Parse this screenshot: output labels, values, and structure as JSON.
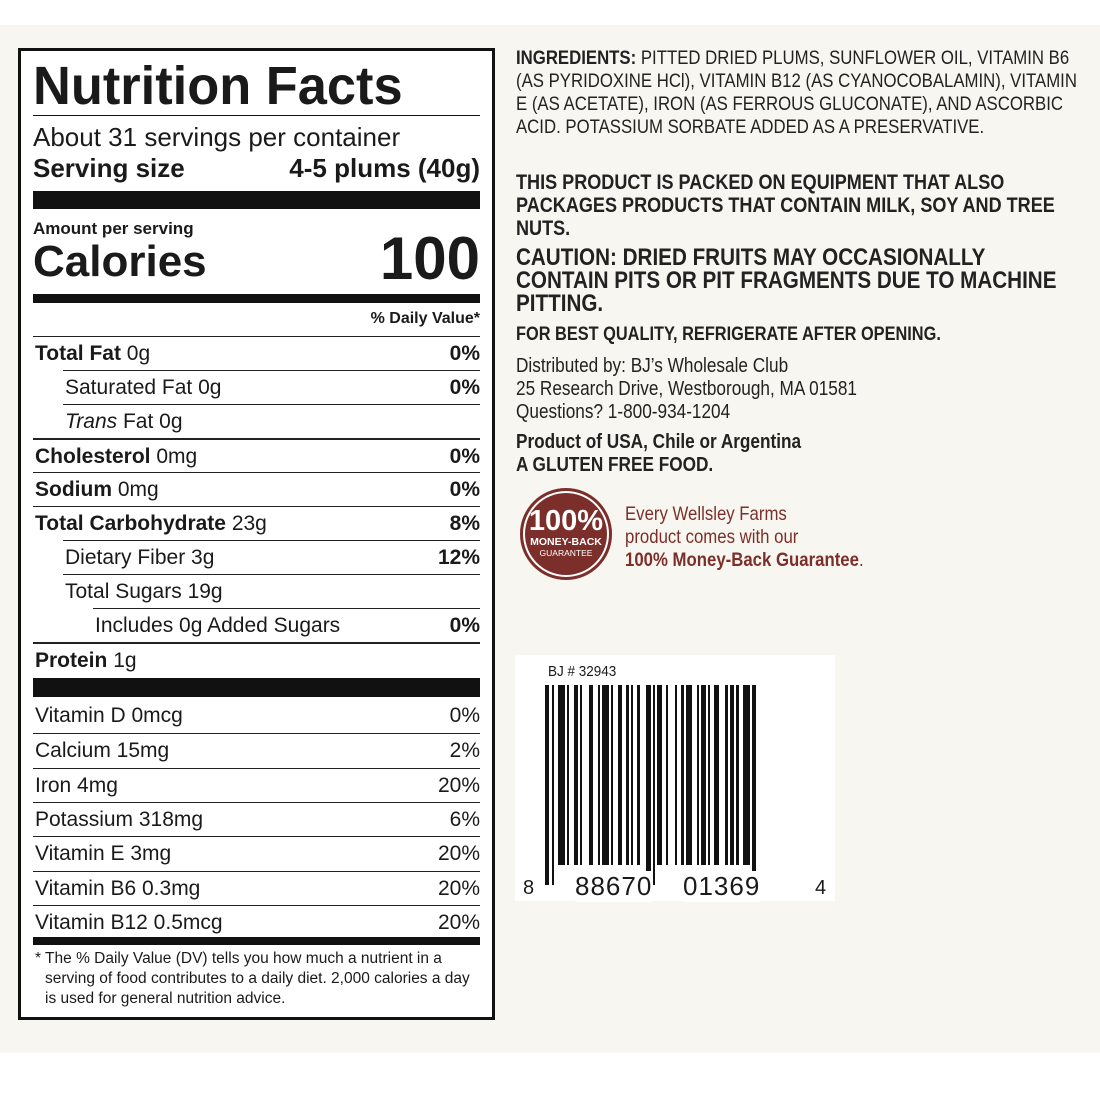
{
  "nutrition": {
    "title": "Nutrition Facts",
    "servings": "About 31 servings per container",
    "serving_size_label": "Serving size",
    "serving_size_value": "4-5 plums (40g)",
    "amount_per_serving": "Amount per serving",
    "calories_label": "Calories",
    "calories_value": "100",
    "dv_header": "% Daily Value*",
    "nutrients": [
      {
        "name": "Total Fat",
        "amount": "0g",
        "dv": "0%"
      },
      {
        "name": "Saturated Fat",
        "amount": "0g",
        "dv": "0%"
      },
      {
        "name": "Trans",
        "name_suffix": "Fat",
        "amount": "0g",
        "dv": ""
      },
      {
        "name": "Cholesterol",
        "amount": "0mg",
        "dv": "0%"
      },
      {
        "name": "Sodium",
        "amount": "0mg",
        "dv": "0%"
      },
      {
        "name": "Total Carbohydrate",
        "amount": "23g",
        "dv": "8%"
      },
      {
        "name": "Dietary Fiber",
        "amount": "3g",
        "dv": "12%"
      },
      {
        "name": "Total Sugars",
        "amount": "19g",
        "dv": ""
      },
      {
        "name": "Includes 0g Added Sugars",
        "amount": "",
        "dv": "0%"
      },
      {
        "name": "Protein",
        "amount": "1g",
        "dv": ""
      }
    ],
    "vitamins": [
      {
        "name": "Vitamin D 0mcg",
        "dv": "0%"
      },
      {
        "name": "Calcium 15mg",
        "dv": "2%"
      },
      {
        "name": "Iron 4mg",
        "dv": "20%"
      },
      {
        "name": "Potassium 318mg",
        "dv": "6%"
      },
      {
        "name": "Vitamin E 3mg",
        "dv": "20%"
      },
      {
        "name": "Vitamin B6 0.3mg",
        "dv": "20%"
      },
      {
        "name": "Vitamin B12 0.5mcg",
        "dv": "20%"
      }
    ],
    "footnote": "* The % Daily Value (DV) tells you how much a nutrient in a serving of food contributes to a daily diet. 2,000 calories a day is used for general nutrition advice."
  },
  "info": {
    "ingredients_label": "INGREDIENTS:",
    "ingredients_text": "PITTED DRIED PLUMS, SUNFLOWER OIL, VITAMIN B6 (AS PYRIDOXINE HCl), VITAMIN B12 (AS CYANOCOBALAMIN), VITAMIN E (AS ACETATE), IRON (AS FERROUS GLUCONATE), AND ASCORBIC ACID. POTASSIUM SORBATE ADDED AS A PRESERVATIVE.",
    "allergen": "THIS PRODUCT IS PACKED ON EQUIPMENT THAT ALSO PACKAGES PRODUCTS THAT CONTAIN MILK, SOY AND TREE NUTS.",
    "caution": "CAUTION: DRIED FRUITS MAY OCCASIONALLY CONTAIN PITS OR PIT FRAGMENTS DUE TO MACHINE PITTING.",
    "storage": "FOR BEST QUALITY, REFRIGERATE AFTER OPENING.",
    "distributor_line1": "Distributed by: BJ’s Wholesale Club",
    "distributor_line2": "25 Research Drive, Westborough, MA 01581",
    "distributor_line3": "Questions? 1-800-934-1204",
    "origin": "Product of USA, Chile or Argentina",
    "gluten": "A GLUTEN FREE FOOD."
  },
  "guarantee": {
    "badge_big": "100%",
    "badge_line1": "MONEY-BACK",
    "badge_line2": "GUARANTEE",
    "text_line1": "Every Wellsley Farms",
    "text_line2": "product comes with our",
    "text_bold": "100% Money-Back Guarantee",
    "text_end": ".",
    "color": "#7c2f2a"
  },
  "barcode": {
    "item_number": "BJ # 32943",
    "digit_left": "8",
    "group1": "88670",
    "group2": "01369",
    "digit_right": "4"
  }
}
